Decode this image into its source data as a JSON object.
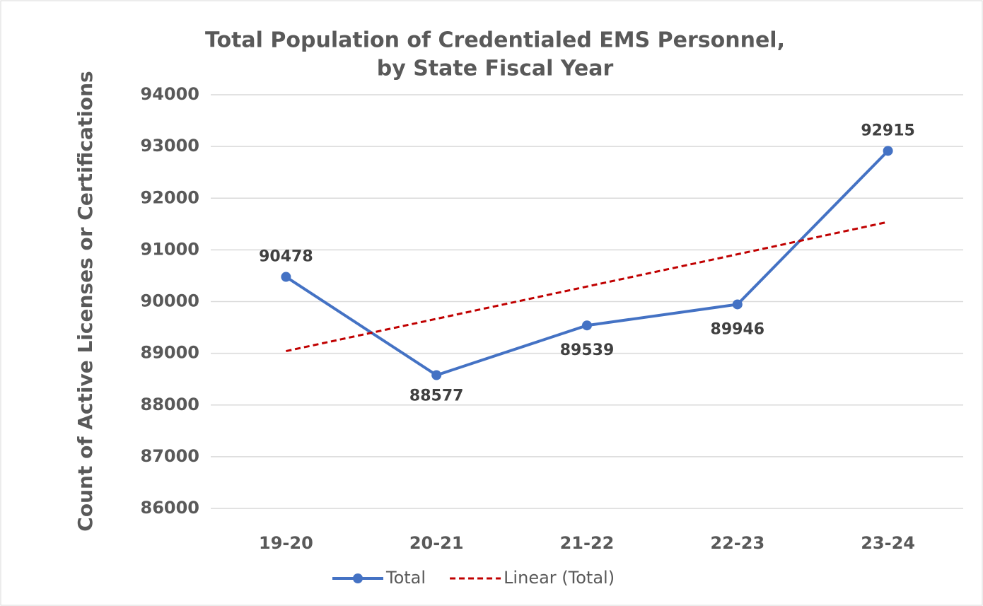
{
  "chart_data": {
    "type": "line",
    "title": [
      "Total Population of Credentialed EMS Personnel,",
      "by State Fiscal Year"
    ],
    "y_label": "Count of Active Licenses or Certifications",
    "categories": [
      "19-20",
      "20-21",
      "21-22",
      "22-23",
      "23-24"
    ],
    "series": [
      {
        "name": "Total",
        "color": "#4472c4",
        "values": [
          90478,
          88577,
          89539,
          89946,
          92915
        ],
        "markers": true,
        "data_labels": true
      },
      {
        "name": "Linear (Total)",
        "color": "#c00000",
        "values": [
          89042,
          89667,
          90291,
          90915,
          91540
        ],
        "dashed": true
      }
    ],
    "ylim": [
      86000,
      94000
    ],
    "yticks": [
      86000,
      87000,
      88000,
      89000,
      90000,
      91000,
      92000,
      93000,
      94000
    ],
    "grid": true,
    "legend": "bottom"
  }
}
